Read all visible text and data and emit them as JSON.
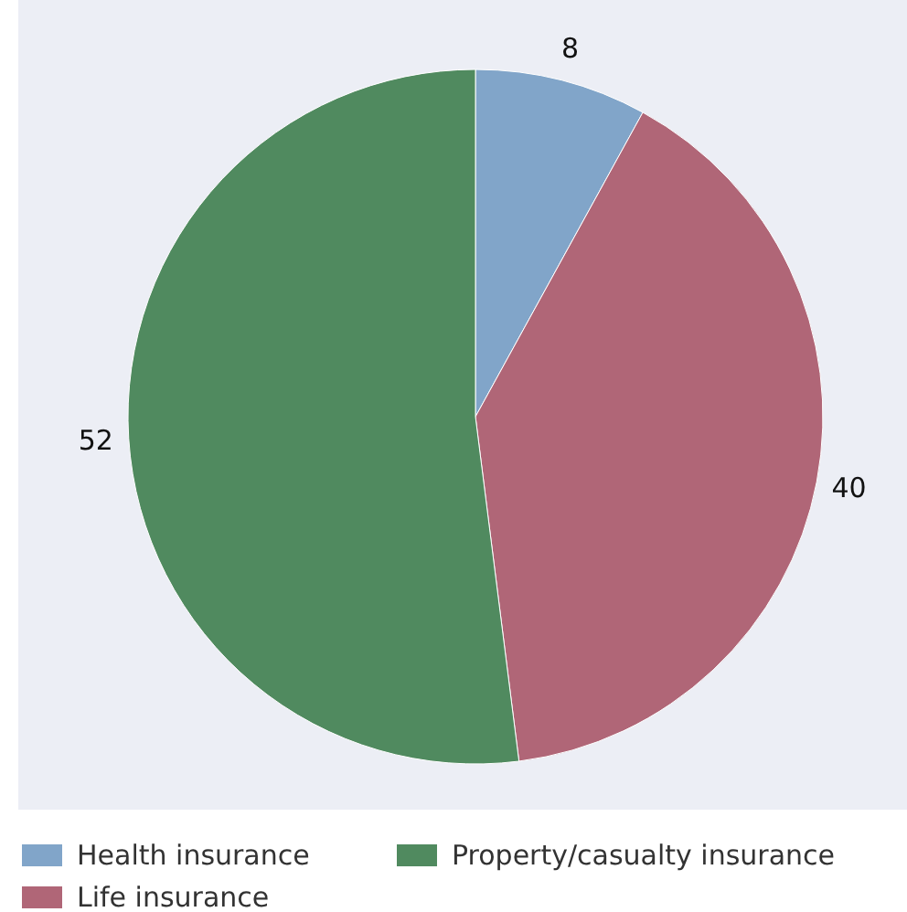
{
  "chart_data": {
    "type": "pie",
    "categories": [
      "Health insurance",
      "Life insurance",
      "Property/casualty insurance"
    ],
    "values": [
      8,
      40,
      52
    ],
    "colors": [
      "#81a5c9",
      "#b06677",
      "#508a5f"
    ],
    "data_labels": true,
    "legend": "bottom"
  }
}
